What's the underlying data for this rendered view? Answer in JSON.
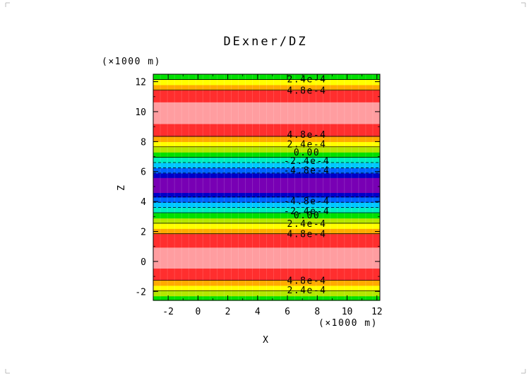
{
  "chart_data": {
    "type": "heatmap",
    "title": "DExner/DZ",
    "xlabel": "X",
    "ylabel": "Z",
    "x_unit": "(×1000 m)",
    "y_unit": "(×1000 m)",
    "xlim": [
      -3,
      12.2
    ],
    "ylim": [
      -2.6,
      12.5
    ],
    "xticks": [
      "-2",
      "0",
      "2",
      "4",
      "6",
      "8",
      "10",
      "12"
    ],
    "yticks": [
      "-2",
      "0",
      "2",
      "4",
      "6",
      "8",
      "10",
      "12"
    ],
    "bands": [
      {
        "z0": -2.6,
        "z1": -2.3,
        "color": "#00e000"
      },
      {
        "z0": -2.3,
        "z1": -1.95,
        "color": "#b4e600"
      },
      {
        "z0": -1.95,
        "z1": -1.6,
        "color": "#ffff00"
      },
      {
        "z0": -1.6,
        "z1": -1.25,
        "color": "#ffaa00"
      },
      {
        "z0": -1.25,
        "z1": -0.45,
        "color": "#ff2e2e"
      },
      {
        "z0": -0.45,
        "z1": 0.95,
        "color": "#ff9da0"
      },
      {
        "z0": 0.95,
        "z1": 1.85,
        "color": "#ff2e2e"
      },
      {
        "z0": 1.85,
        "z1": 2.2,
        "color": "#ffaa00"
      },
      {
        "z0": 2.2,
        "z1": 2.55,
        "color": "#ffff00"
      },
      {
        "z0": 2.55,
        "z1": 2.9,
        "color": "#b4e600"
      },
      {
        "z0": 2.9,
        "z1": 3.25,
        "color": "#00e000"
      },
      {
        "z0": 3.25,
        "z1": 3.6,
        "color": "#00f0c0"
      },
      {
        "z0": 3.6,
        "z1": 3.95,
        "color": "#00c8ff"
      },
      {
        "z0": 3.95,
        "z1": 4.3,
        "color": "#0064ff"
      },
      {
        "z0": 4.3,
        "z1": 4.6,
        "color": "#0000c8"
      },
      {
        "z0": 4.6,
        "z1": 5.6,
        "color": "#7800b4"
      },
      {
        "z0": 5.6,
        "z1": 5.9,
        "color": "#0000c8"
      },
      {
        "z0": 5.9,
        "z1": 6.25,
        "color": "#0064ff"
      },
      {
        "z0": 6.25,
        "z1": 6.6,
        "color": "#00c8ff"
      },
      {
        "z0": 6.6,
        "z1": 6.95,
        "color": "#00f0c0"
      },
      {
        "z0": 6.95,
        "z1": 7.3,
        "color": "#00e000"
      },
      {
        "z0": 7.3,
        "z1": 7.65,
        "color": "#b4e600"
      },
      {
        "z0": 7.65,
        "z1": 8.0,
        "color": "#ffff00"
      },
      {
        "z0": 8.0,
        "z1": 8.35,
        "color": "#ffaa00"
      },
      {
        "z0": 8.35,
        "z1": 9.2,
        "color": "#ff2e2e"
      },
      {
        "z0": 9.2,
        "z1": 10.65,
        "color": "#ff9da0"
      },
      {
        "z0": 10.65,
        "z1": 11.45,
        "color": "#ff2e2e"
      },
      {
        "z0": 11.45,
        "z1": 11.8,
        "color": "#ffaa00"
      },
      {
        "z0": 11.8,
        "z1": 12.15,
        "color": "#ffff00"
      },
      {
        "z0": 12.15,
        "z1": 12.5,
        "color": "#00e000"
      }
    ],
    "contour_labels": [
      {
        "z": -1.9,
        "text": "2.4e-4"
      },
      {
        "z": -1.25,
        "text": "4.8e-4"
      },
      {
        "z": 1.85,
        "text": "4.8e-4"
      },
      {
        "z": 2.55,
        "text": "2.4e-4"
      },
      {
        "z": 3.1,
        "text": "0.00"
      },
      {
        "z": 3.4,
        "text": "-2.4e-4"
      },
      {
        "z": 4.05,
        "text": "-4.8e-4"
      },
      {
        "z": 6.1,
        "text": "-4.8e-4"
      },
      {
        "z": 6.75,
        "text": "-2.4e-4"
      },
      {
        "z": 7.3,
        "text": "0.00"
      },
      {
        "z": 7.85,
        "text": "2.4e-4"
      },
      {
        "z": 8.5,
        "text": "4.8e-4"
      },
      {
        "z": 11.45,
        "text": "4.8e-4"
      },
      {
        "z": 12.2,
        "text": "2.4e-4"
      }
    ],
    "contour_lines": [
      {
        "z": -1.95,
        "style": "solid"
      },
      {
        "z": -1.25,
        "style": "solid"
      },
      {
        "z": 1.85,
        "style": "solid"
      },
      {
        "z": 2.55,
        "style": "solid"
      },
      {
        "z": 3.25,
        "style": "solid"
      },
      {
        "z": 3.6,
        "style": "dashed"
      },
      {
        "z": 3.95,
        "style": "dashed"
      },
      {
        "z": 4.3,
        "style": "dashed"
      },
      {
        "z": 5.9,
        "style": "dashed"
      },
      {
        "z": 6.25,
        "style": "dashed"
      },
      {
        "z": 6.6,
        "style": "dashed"
      },
      {
        "z": 6.95,
        "style": "solid"
      },
      {
        "z": 7.65,
        "style": "solid"
      },
      {
        "z": 8.35,
        "style": "solid"
      },
      {
        "z": 11.45,
        "style": "solid"
      },
      {
        "z": 12.15,
        "style": "solid"
      }
    ],
    "label_x": 7.3,
    "grid": false
  }
}
